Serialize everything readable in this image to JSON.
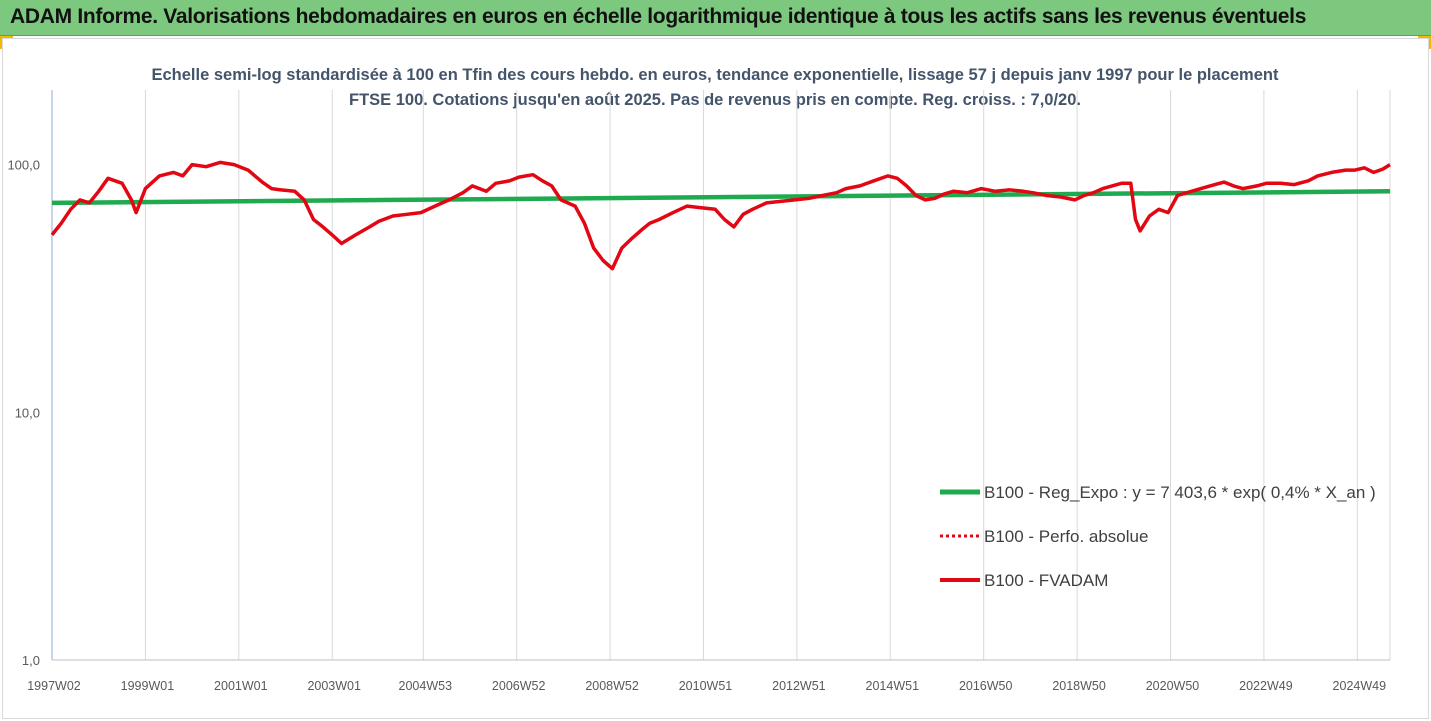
{
  "banner": {
    "title": "ADAM Informe. Valorisations hebdomadaires en euros en échelle logarithmique identique à tous les actifs sans les revenus éventuels",
    "bg_color": "#7dc87f",
    "corner_color": "#f5b800"
  },
  "chart_data": {
    "type": "line",
    "title": "Echelle semi-log standardisée à 100 en Tfin des cours hebdo. en euros, tendance exponentielle, lissage 57 j depuis janv 1997 pour le placement FTSE 100. Cotations jusqu'en août 2025. Pas de revenus pris en compte. Reg. croiss. : 7,0/20.",
    "y_scale": "log",
    "ylim": [
      1,
      200
    ],
    "y_ticks": [
      1,
      10,
      100
    ],
    "y_tick_labels": [
      "1,0",
      "10,0",
      "100,0"
    ],
    "xlim": [
      1997.0,
      2025.65
    ],
    "x_ticks": [
      1997.0,
      1999.0,
      2001.0,
      2003.0,
      2004.95,
      2006.95,
      2008.95,
      2010.95,
      2012.95,
      2014.95,
      2016.95,
      2018.95,
      2020.95,
      2022.95,
      2024.95
    ],
    "x_tick_labels": [
      "1997W02",
      "1999W01",
      "2001W01",
      "2003W01",
      "2004W53",
      "2006W52",
      "2008W52",
      "2010W51",
      "2012W51",
      "2014W51",
      "2016W50",
      "2018W50",
      "2020W50",
      "2022W49",
      "2024W49"
    ],
    "grid": "vertical",
    "legend_position": "bottom-right",
    "series": [
      {
        "name": "B100 - Reg_Expo : y = 7 403,6 * exp( 0,4% *  X_an )",
        "color": "#1faa4f",
        "style": "solid",
        "x": [
          1997.0,
          2025.65
        ],
        "y": [
          70,
          78
        ]
      },
      {
        "name": "B100 - Perfo. absolue",
        "color": "#e30613",
        "style": "dotted",
        "x": [],
        "y": []
      },
      {
        "name": "B100 - FVADAM",
        "color": "#e30613",
        "style": "solid",
        "x": [
          1997.0,
          1997.2,
          1997.4,
          1997.6,
          1997.8,
          1998.0,
          1998.2,
          1998.5,
          1998.7,
          1998.8,
          1999.0,
          1999.3,
          1999.6,
          1999.8,
          2000.0,
          2000.3,
          2000.6,
          2000.9,
          2001.2,
          2001.5,
          2001.7,
          2001.9,
          2002.2,
          2002.4,
          2002.6,
          2002.8,
          2003.0,
          2003.2,
          2003.5,
          2003.8,
          2004.0,
          2004.3,
          2004.6,
          2004.9,
          2005.2,
          2005.5,
          2005.8,
          2006.0,
          2006.3,
          2006.5,
          2006.8,
          2007.0,
          2007.3,
          2007.5,
          2007.7,
          2007.9,
          2008.2,
          2008.4,
          2008.6,
          2008.8,
          2009.0,
          2009.2,
          2009.4,
          2009.6,
          2009.8,
          2010.0,
          2010.3,
          2010.6,
          2010.9,
          2011.2,
          2011.4,
          2011.6,
          2011.8,
          2012.0,
          2012.3,
          2012.6,
          2012.9,
          2013.2,
          2013.5,
          2013.8,
          2014.0,
          2014.3,
          2014.6,
          2014.9,
          2015.1,
          2015.3,
          2015.5,
          2015.7,
          2015.9,
          2016.1,
          2016.3,
          2016.6,
          2016.9,
          2017.2,
          2017.5,
          2017.8,
          2018.0,
          2018.3,
          2018.6,
          2018.9,
          2019.1,
          2019.3,
          2019.5,
          2019.7,
          2019.9,
          2020.1,
          2020.2,
          2020.3,
          2020.5,
          2020.7,
          2020.9,
          2021.1,
          2021.3,
          2021.6,
          2021.9,
          2022.1,
          2022.3,
          2022.5,
          2022.8,
          2023.0,
          2023.3,
          2023.6,
          2023.9,
          2024.1,
          2024.4,
          2024.7,
          2024.9,
          2025.1,
          2025.3,
          2025.5,
          2025.65
        ],
        "y": [
          52,
          58,
          66,
          72,
          70,
          78,
          88,
          84,
          72,
          64,
          80,
          90,
          93,
          90,
          100,
          98,
          102,
          100,
          95,
          85,
          80,
          79,
          78,
          72,
          60,
          56,
          52,
          48,
          52,
          56,
          59,
          62,
          63,
          64,
          68,
          72,
          77,
          82,
          78,
          84,
          86,
          89,
          91,
          86,
          82,
          72,
          68,
          58,
          46,
          41,
          38,
          46,
          50,
          54,
          58,
          60,
          64,
          68,
          67,
          66,
          60,
          56,
          63,
          66,
          70,
          71,
          72,
          73,
          75,
          77,
          80,
          82,
          86,
          90,
          88,
          82,
          75,
          72,
          73,
          76,
          78,
          77,
          80,
          78,
          79,
          78,
          77,
          75,
          74,
          72,
          75,
          77,
          80,
          82,
          84,
          84,
          60,
          54,
          62,
          66,
          64,
          75,
          77,
          80,
          83,
          85,
          82,
          80,
          82,
          84,
          84,
          83,
          86,
          90,
          93,
          95,
          95,
          97,
          93,
          96,
          100
        ]
      }
    ]
  }
}
